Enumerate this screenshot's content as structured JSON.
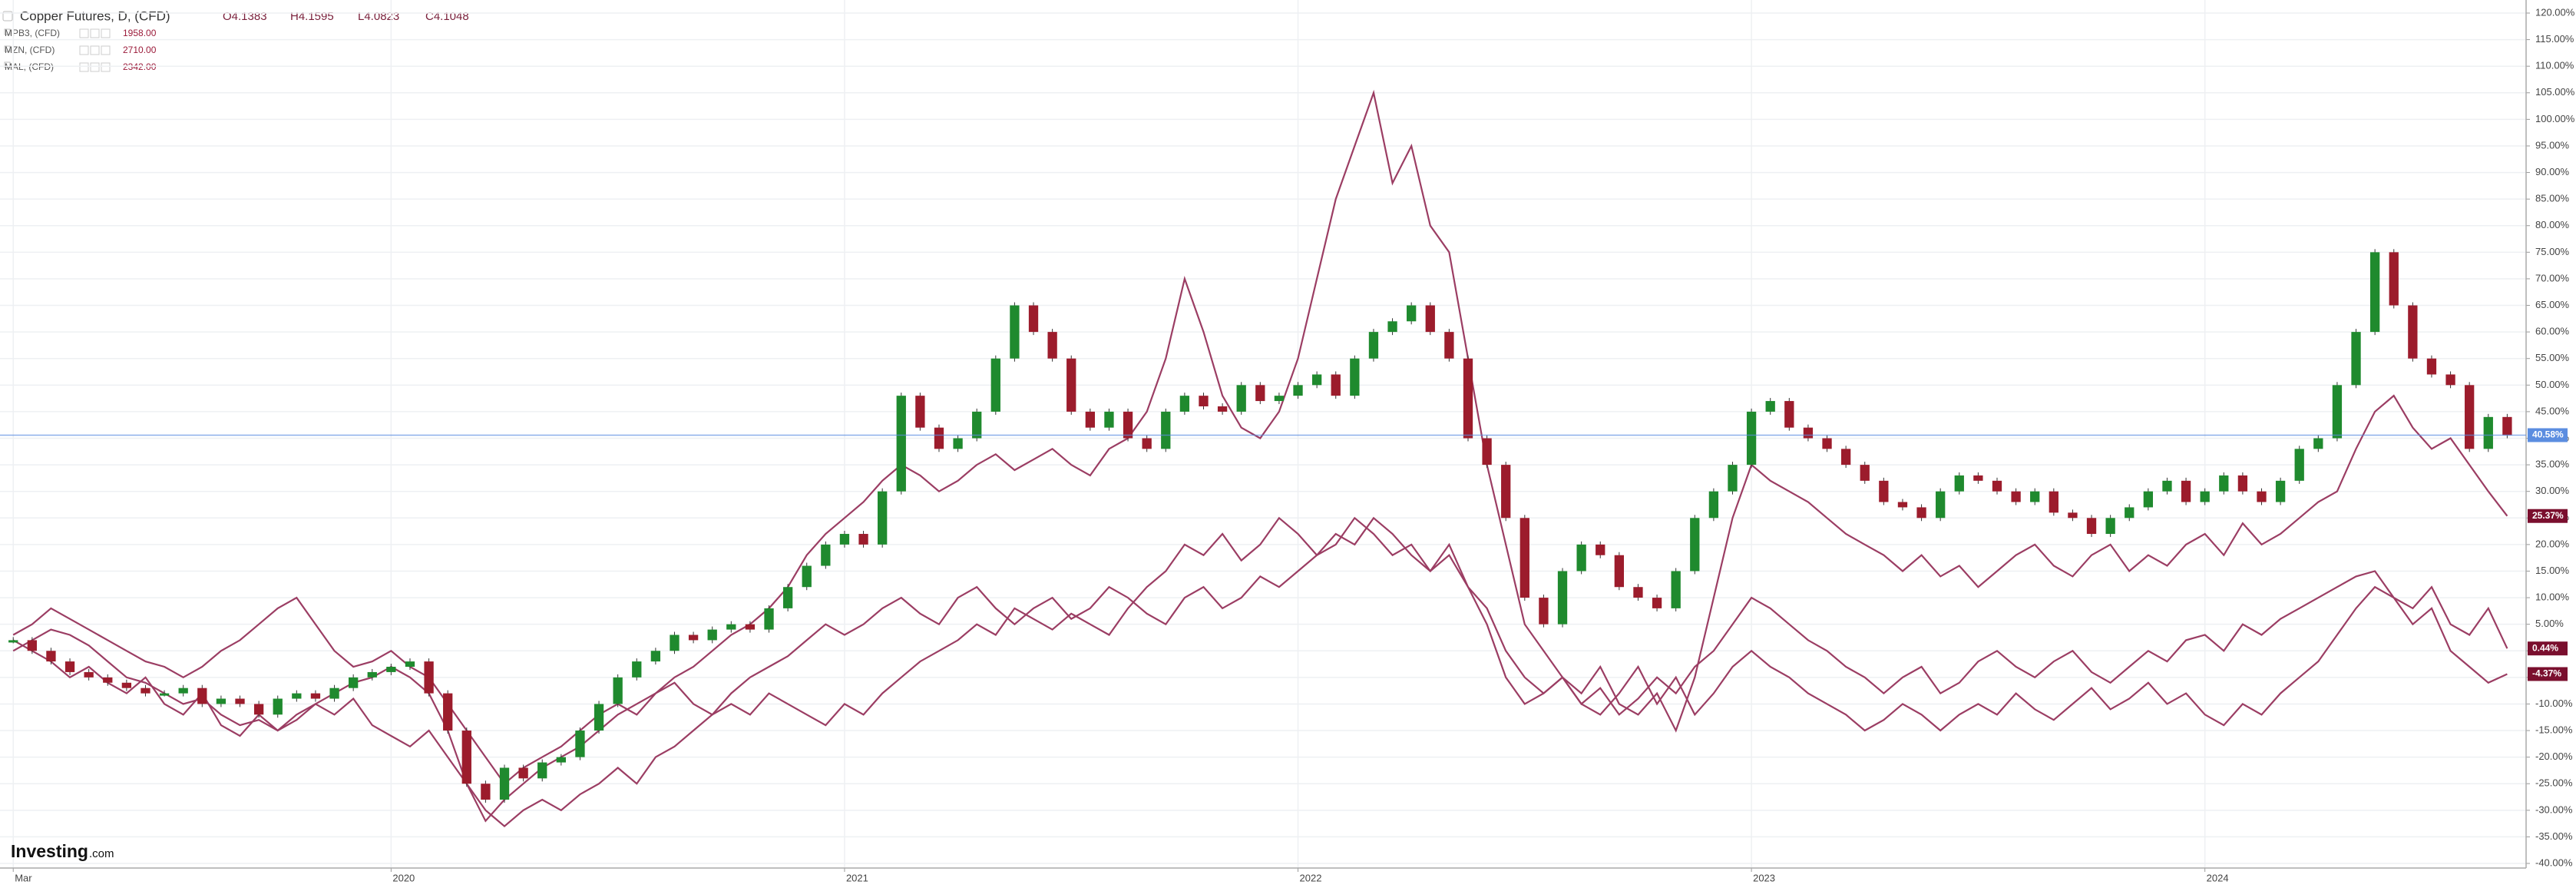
{
  "chart_data": {
    "type": "line",
    "header": {
      "ohlc": [
        "O4.1383",
        "H4.1595",
        "L4.0823",
        "C4.1048"
      ]
    },
    "logo": "Investing",
    "logo_suffix": ".com",
    "ylim": [
      -40,
      120
    ],
    "yticks": [
      {
        "value": 120,
        "label": "120.00%"
      },
      {
        "value": 115,
        "label": "115.00%"
      },
      {
        "value": 110,
        "label": "110.00%"
      },
      {
        "value": 105,
        "label": "105.00%"
      },
      {
        "value": 100,
        "label": "100.00%"
      },
      {
        "value": 95,
        "label": "95.00%"
      },
      {
        "value": 90,
        "label": "90.00%"
      },
      {
        "value": 85,
        "label": "85.00%"
      },
      {
        "value": 80,
        "label": "80.00%"
      },
      {
        "value": 75,
        "label": "75.00%"
      },
      {
        "value": 70,
        "label": "70.00%"
      },
      {
        "value": 65,
        "label": "65.00%"
      },
      {
        "value": 60,
        "label": "60.00%"
      },
      {
        "value": 55,
        "label": "55.00%"
      },
      {
        "value": 50,
        "label": "50.00%"
      },
      {
        "value": 45,
        "label": "45.00%"
      },
      {
        "value": 40,
        "label": "40.00%"
      },
      {
        "value": 35,
        "label": "35.00%"
      },
      {
        "value": 30,
        "label": "30.00%"
      },
      {
        "value": 25,
        "label": "25.00%"
      },
      {
        "value": 20,
        "label": "20.00%"
      },
      {
        "value": 15,
        "label": "15.00%"
      },
      {
        "value": 10,
        "label": "10.00%"
      },
      {
        "value": 5,
        "label": "5.00%"
      },
      {
        "value": 0,
        "label": "0.00%"
      },
      {
        "value": -5,
        "label": "-5.00%"
      },
      {
        "value": -10,
        "label": "-10.00%"
      },
      {
        "value": -15,
        "label": "-15.00%"
      },
      {
        "value": -20,
        "label": "-20.00%"
      },
      {
        "value": -25,
        "label": "-25.00%"
      },
      {
        "value": -30,
        "label": "-30.00%"
      },
      {
        "value": -35,
        "label": "-35.00%"
      },
      {
        "value": -40,
        "label": "-40.00%"
      }
    ],
    "xlim": [
      -0.7,
      133
    ],
    "xticks": [
      {
        "value": 0,
        "label": "Mar"
      },
      {
        "value": 20,
        "label": "2020"
      },
      {
        "value": 44,
        "label": "2021"
      },
      {
        "value": 68,
        "label": "2022"
      },
      {
        "value": 92,
        "label": "2023"
      },
      {
        "value": 116,
        "label": "2024"
      }
    ],
    "grid": true,
    "series": [
      {
        "name": "Copper Futures, D, (CFD)",
        "style": "candles",
        "up_color": "#1f8a2e",
        "down_color": "#9c1c2c",
        "color": "#5b8de0",
        "end_label": "40.58%",
        "values": [
          2,
          0,
          -2,
          -4,
          -5,
          -6,
          -7,
          -8,
          -8,
          -7,
          -10,
          -9,
          -10,
          -12,
          -9,
          -8,
          -9,
          -7,
          -5,
          -4,
          -3,
          -2,
          -8,
          -15,
          -25,
          -28,
          -22,
          -24,
          -21,
          -20,
          -15,
          -10,
          -5,
          -2,
          0,
          3,
          2,
          4,
          5,
          4,
          8,
          12,
          16,
          20,
          22,
          20,
          30,
          48,
          42,
          38,
          40,
          45,
          55,
          65,
          60,
          55,
          45,
          42,
          45,
          40,
          38,
          45,
          48,
          46,
          45,
          50,
          47,
          48,
          50,
          52,
          48,
          55,
          60,
          62,
          65,
          60,
          55,
          40,
          35,
          25,
          10,
          5,
          15,
          20,
          18,
          12,
          10,
          8,
          15,
          25,
          30,
          35,
          45,
          47,
          42,
          40,
          38,
          35,
          32,
          28,
          27,
          25,
          30,
          33,
          32,
          30,
          28,
          30,
          26,
          25,
          22,
          25,
          27,
          30,
          32,
          28,
          30,
          33,
          30,
          28,
          32,
          38,
          40,
          50,
          60,
          75,
          65,
          55,
          52,
          50,
          38,
          44,
          40.58
        ]
      },
      {
        "name": "MPB3, (CFD)",
        "price": "1958.00",
        "color": "#9b3d63",
        "end_label": "-4.37%",
        "values": [
          2,
          0,
          -2,
          -5,
          -3,
          -6,
          -8,
          -5,
          -10,
          -12,
          -8,
          -14,
          -16,
          -12,
          -15,
          -13,
          -10,
          -12,
          -9,
          -14,
          -16,
          -18,
          -15,
          -20,
          -25,
          -30,
          -33,
          -30,
          -28,
          -30,
          -27,
          -25,
          -22,
          -25,
          -20,
          -18,
          -15,
          -12,
          -10,
          -12,
          -8,
          -10,
          -12,
          -14,
          -10,
          -12,
          -8,
          -5,
          -2,
          0,
          2,
          5,
          3,
          8,
          6,
          4,
          7,
          5,
          3,
          8,
          12,
          15,
          20,
          18,
          22,
          17,
          20,
          25,
          22,
          18,
          20,
          25,
          22,
          18,
          20,
          15,
          18,
          12,
          8,
          0,
          -5,
          -8,
          -5,
          -10,
          -12,
          -8,
          -3,
          -10,
          -5,
          -12,
          -8,
          -3,
          0,
          -3,
          -5,
          -8,
          -10,
          -12,
          -15,
          -13,
          -10,
          -12,
          -15,
          -12,
          -10,
          -12,
          -8,
          -11,
          -13,
          -10,
          -7,
          -11,
          -9,
          -6,
          -10,
          -8,
          -12,
          -14,
          -10,
          -12,
          -8,
          -5,
          -2,
          3,
          8,
          12,
          10,
          5,
          8,
          0,
          -3,
          -6,
          -4.37
        ]
      },
      {
        "name": "MZN, (CFD)",
        "price": "2710.00",
        "color": "#9b3d63",
        "end_label": "0.44%",
        "values": [
          3,
          5,
          8,
          6,
          4,
          2,
          0,
          -2,
          -3,
          -5,
          -3,
          0,
          2,
          5,
          8,
          10,
          5,
          0,
          -3,
          -2,
          0,
          -3,
          -5,
          -10,
          -15,
          -20,
          -25,
          -22,
          -20,
          -18,
          -15,
          -12,
          -10,
          -12,
          -8,
          -6,
          -10,
          -12,
          -8,
          -5,
          -3,
          -1,
          2,
          5,
          3,
          5,
          8,
          10,
          7,
          5,
          10,
          12,
          8,
          5,
          8,
          10,
          6,
          8,
          12,
          10,
          7,
          5,
          10,
          12,
          8,
          10,
          14,
          12,
          15,
          18,
          22,
          20,
          25,
          22,
          18,
          15,
          20,
          12,
          5,
          -5,
          -10,
          -8,
          -5,
          -10,
          -7,
          -12,
          -9,
          -5,
          -8,
          -3,
          0,
          5,
          10,
          8,
          5,
          2,
          0,
          -3,
          -5,
          -8,
          -5,
          -3,
          -8,
          -6,
          -2,
          0,
          -3,
          -5,
          -2,
          0,
          -4,
          -6,
          -3,
          0,
          -2,
          2,
          3,
          0,
          5,
          3,
          6,
          8,
          10,
          12,
          14,
          15,
          10,
          8,
          12,
          5,
          3,
          8,
          0.44
        ]
      },
      {
        "name": "MAL, (CFD)",
        "price": "2342.00",
        "color": "#9b3d63",
        "end_label": "25.37%",
        "values": [
          0,
          2,
          4,
          3,
          1,
          -2,
          -5,
          -6,
          -8,
          -10,
          -9,
          -12,
          -14,
          -13,
          -15,
          -12,
          -10,
          -8,
          -6,
          -5,
          -3,
          -5,
          -8,
          -15,
          -25,
          -32,
          -28,
          -25,
          -22,
          -20,
          -18,
          -15,
          -12,
          -10,
          -8,
          -5,
          -3,
          0,
          3,
          5,
          8,
          12,
          18,
          22,
          25,
          28,
          32,
          35,
          33,
          30,
          32,
          35,
          37,
          34,
          36,
          38,
          35,
          33,
          38,
          40,
          45,
          55,
          70,
          60,
          48,
          42,
          40,
          45,
          55,
          70,
          85,
          95,
          105,
          88,
          95,
          80,
          75,
          55,
          35,
          20,
          5,
          0,
          -5,
          -8,
          -3,
          -10,
          -12,
          -8,
          -15,
          -5,
          10,
          25,
          35,
          32,
          30,
          28,
          25,
          22,
          20,
          18,
          15,
          18,
          14,
          16,
          12,
          15,
          18,
          20,
          16,
          14,
          18,
          20,
          15,
          18,
          16,
          20,
          22,
          18,
          24,
          20,
          22,
          25,
          28,
          30,
          38,
          45,
          48,
          42,
          38,
          40,
          35,
          30,
          25.37
        ]
      }
    ]
  }
}
